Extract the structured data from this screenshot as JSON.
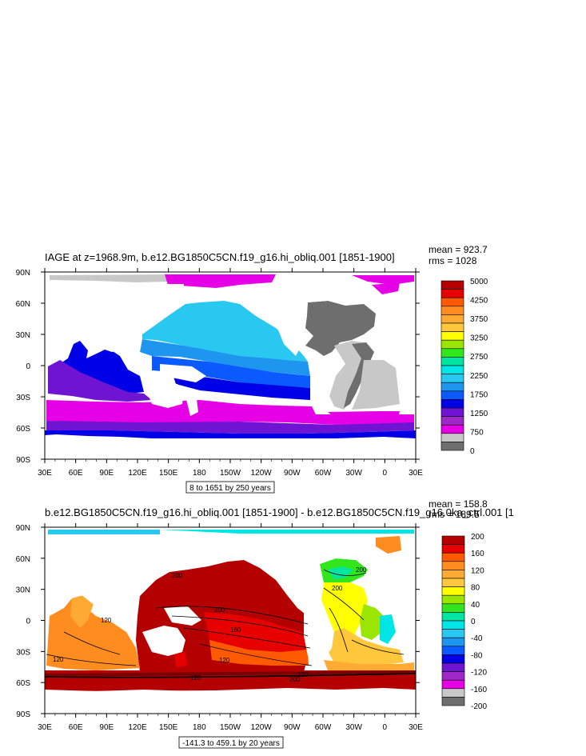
{
  "chart_data": [
    {
      "type": "heatmap",
      "title": "IAGE at z=1968.9m, b.e12.BG1850C5CN.f19_g16.hi_obliq.001 [1851-1900]",
      "stats": {
        "mean": "mean = 923.7",
        "rms": "rms = 1028"
      },
      "caption": "8 to 1651 by 250 years",
      "x_ticks": [
        "30E",
        "60E",
        "90E",
        "120E",
        "150E",
        "180",
        "150W",
        "120W",
        "90W",
        "60W",
        "30W",
        "0",
        "30E"
      ],
      "y_ticks": [
        "90N",
        "60N",
        "30N",
        "0",
        "30S",
        "60S",
        "90S"
      ],
      "colorbar_labels": [
        "5000",
        "4250",
        "3750",
        "3250",
        "2750",
        "2250",
        "1750",
        "1250",
        "750",
        "0"
      ],
      "colorbar_colors": [
        "#b40000",
        "#e60000",
        "#ff5a00",
        "#ff8c1e",
        "#ffaa32",
        "#ffc83c",
        "#ffff00",
        "#9be600",
        "#32e61e",
        "#00e6a0",
        "#00e6e6",
        "#28c8f0",
        "#1e96f0",
        "#0a5aff",
        "#0000e6",
        "#6e14d2",
        "#a028c8",
        "#e600e6",
        "#c8c8c8",
        "#6e6e6e"
      ]
    },
    {
      "type": "heatmap",
      "title": "b.e12.BG1850C5CN.f19_g16.hi_obliq.001 [1851-1900] - b.e12.BG1850C5CN.f19_g16.0ka_ctrl.001 [1",
      "stats": {
        "mean": "mean = 158.8",
        "rms": "rms = 189.5"
      },
      "caption": "-141.3 to 459.1 by 20 years",
      "x_ticks": [
        "30E",
        "60E",
        "90E",
        "120E",
        "150E",
        "180",
        "150W",
        "120W",
        "90W",
        "60W",
        "30W",
        "0",
        "30E"
      ],
      "y_ticks": [
        "90N",
        "60N",
        "30N",
        "0",
        "30S",
        "60S",
        "90S"
      ],
      "colorbar_labels": [
        "200",
        "160",
        "120",
        "80",
        "40",
        "0",
        "-40",
        "-80",
        "-120",
        "-160",
        "-200"
      ],
      "colorbar_colors": [
        "#b40000",
        "#e60000",
        "#ff5a00",
        "#ff8c1e",
        "#ffaa32",
        "#ffc83c",
        "#ffff00",
        "#9be600",
        "#32e61e",
        "#00e6a0",
        "#00e6e6",
        "#28c8f0",
        "#1e96f0",
        "#0a5aff",
        "#0000e6",
        "#6e14d2",
        "#a028c8",
        "#e600e6",
        "#c8c8c8",
        "#6e6e6e"
      ],
      "contour_labels": [
        "200",
        "200",
        "160",
        "120",
        "120",
        "120",
        "120",
        "120",
        "200",
        "200",
        "200"
      ]
    }
  ]
}
